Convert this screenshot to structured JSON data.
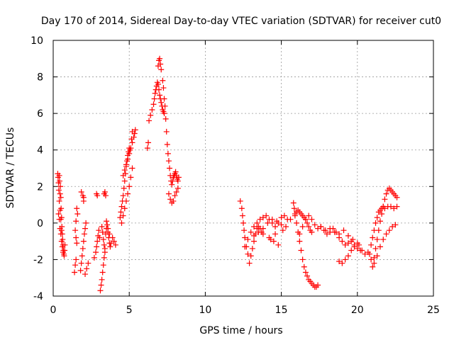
{
  "chart_data": {
    "type": "scatter",
    "title": "Day 170 of 2014, Sidereal Day-to-day VTEC variation (SDTVAR) for receiver cut0",
    "xlabel": "GPS time / hours",
    "ylabel": "SDTVAR / TECUs",
    "xlim": [
      0,
      25
    ],
    "ylim": [
      -4,
      10
    ],
    "xticks": [
      0,
      5,
      10,
      15,
      20,
      25
    ],
    "yticks": [
      -4,
      -2,
      0,
      2,
      4,
      6,
      8,
      10
    ],
    "grid": true,
    "marker": "plus",
    "color": "#ff0000",
    "series": [
      {
        "name": "SDTVAR",
        "x": [
          0.3,
          0.32,
          0.35,
          0.37,
          0.4,
          0.42,
          0.45,
          0.47,
          0.5,
          0.52,
          0.55,
          0.57,
          0.6,
          0.62,
          0.65,
          0.67,
          0.7,
          0.72,
          0.75,
          0.77,
          0.35,
          0.4,
          0.45,
          0.5,
          0.55,
          0.6,
          0.65,
          0.4,
          0.45,
          0.5,
          0.55,
          1.4,
          1.45,
          1.5,
          1.55,
          1.6,
          1.5,
          1.45,
          1.5,
          1.55,
          1.8,
          1.85,
          1.9,
          1.95,
          2.0,
          2.05,
          2.1,
          2.15,
          2.0,
          1.95,
          1.85,
          2.0,
          2.1,
          2.2,
          2.3,
          2.7,
          2.8,
          2.85,
          2.9,
          2.95,
          3.0,
          3.05,
          2.9,
          2.85,
          3.1,
          3.15,
          3.2,
          3.25,
          3.3,
          3.35,
          3.4,
          3.2,
          3.25,
          3.3,
          3.35,
          3.4,
          3.45,
          3.5,
          3.55,
          3.6,
          3.65,
          3.7,
          3.75,
          3.8,
          3.5,
          3.6,
          3.7,
          3.9,
          4.0,
          4.1,
          3.35,
          3.4,
          3.45,
          4.4,
          4.45,
          4.5,
          4.55,
          4.6,
          4.65,
          4.7,
          4.75,
          4.8,
          4.85,
          4.9,
          4.95,
          5.0,
          5.05,
          4.5,
          4.6,
          4.7,
          4.8,
          4.9,
          5.0,
          5.1,
          5.2,
          5.15,
          5.2,
          4.6,
          4.7,
          4.8,
          4.9,
          5.0,
          5.1,
          5.2,
          5.3,
          5.35,
          5.4,
          6.2,
          6.25,
          6.3,
          6.4,
          6.5,
          6.6,
          6.65,
          6.7,
          6.75,
          6.8,
          6.85,
          6.9,
          6.95,
          7.0,
          7.05,
          7.1,
          7.15,
          7.2,
          7.25,
          7.3,
          6.9,
          6.95,
          7.0,
          7.05,
          7.1,
          7.2,
          7.25,
          7.3,
          7.35,
          7.4,
          7.45,
          7.5,
          7.55,
          7.6,
          7.65,
          7.7,
          7.75,
          7.8,
          7.85,
          7.9,
          7.95,
          8.0,
          8.05,
          8.1,
          8.15,
          8.2,
          8.25,
          7.6,
          7.7,
          7.8,
          7.9,
          8.0,
          8.1,
          8.2,
          12.3,
          12.4,
          12.45,
          12.5,
          12.55,
          12.6,
          12.7,
          12.8,
          12.9,
          13.0,
          13.1,
          13.2,
          13.3,
          13.4,
          13.5,
          13.6,
          13.7,
          13.8,
          12.6,
          12.8,
          13.0,
          13.2,
          13.4,
          13.6,
          13.8,
          14.0,
          14.2,
          14.4,
          14.6,
          14.8,
          15.0,
          15.2,
          15.4,
          13.2,
          13.5,
          13.8,
          14.1,
          14.4,
          14.7,
          15.0,
          15.3,
          14.2,
          14.5,
          14.8,
          14.3,
          14.6,
          15.1,
          15.6,
          15.8,
          15.85,
          15.9,
          16.0,
          16.1,
          16.2,
          16.3,
          16.4,
          16.5,
          16.6,
          16.7,
          16.8,
          16.9,
          17.0,
          17.1,
          17.2,
          17.3,
          17.4,
          15.9,
          16.0,
          16.1,
          16.2,
          16.3,
          16.4,
          16.5,
          16.6,
          16.7,
          16.8,
          16.9,
          17.0,
          16.2,
          16.4,
          16.6,
          16.8,
          17.0,
          17.2,
          17.4,
          17.6,
          17.8,
          18.0,
          18.2,
          18.4,
          18.6,
          18.8,
          19.0,
          19.2,
          19.4,
          19.6,
          19.8,
          20.0,
          20.2,
          17.6,
          17.9,
          18.2,
          18.5,
          18.8,
          19.1,
          19.4,
          19.7,
          20.0,
          18.8,
          19.0,
          19.2,
          19.4,
          19.6,
          19.8,
          20.1,
          20.3,
          20.5,
          20.7,
          20.9,
          21.1,
          21.3,
          21.5,
          21.7,
          21.9,
          22.1,
          22.3,
          22.5,
          21.0,
          21.1,
          21.2,
          21.3,
          21.4,
          21.5,
          21.6,
          21.7,
          21.8,
          21.9,
          22.0,
          22.1,
          22.2,
          22.3,
          22.4,
          22.5,
          22.6,
          20.8,
          20.9,
          21.0,
          21.1,
          21.2,
          21.3,
          21.4,
          21.5,
          21.6,
          21.7,
          21.8,
          22.0,
          22.2,
          22.4,
          22.6
        ],
        "y": [
          2.7,
          2.5,
          2.2,
          1.8,
          2.6,
          2.3,
          1.6,
          2.0,
          1.4,
          0.8,
          0.3,
          -0.2,
          -0.6,
          -0.9,
          -1.2,
          -1.5,
          -1.7,
          -1.8,
          -1.5,
          -1.2,
          0.5,
          0.2,
          -0.3,
          -0.6,
          -1.0,
          -1.3,
          -1.6,
          1.2,
          0.7,
          0.2,
          -0.4,
          -2.7,
          -2.3,
          -2.0,
          0.8,
          0.5,
          0.1,
          -0.4,
          -0.8,
          -1.1,
          -2.6,
          -2.2,
          -1.8,
          -1.4,
          -1.0,
          -0.6,
          -0.3,
          0.0,
          1.2,
          1.5,
          1.7,
          1.4,
          -2.8,
          -2.5,
          -2.2,
          -1.9,
          -1.6,
          -1.3,
          -1.0,
          -0.7,
          -0.4,
          -0.8,
          1.5,
          1.6,
          -3.7,
          -3.4,
          -3.1,
          -2.7,
          -2.3,
          -1.9,
          -1.6,
          -0.2,
          -0.5,
          -0.9,
          -1.2,
          -1.4,
          -0.6,
          -0.3,
          -0.1,
          -0.5,
          -0.8,
          -1.1,
          -1.3,
          -1.1,
          0.1,
          -0.3,
          -0.6,
          -0.8,
          -1.0,
          -1.2,
          1.6,
          1.7,
          1.5,
          0.3,
          0.6,
          0.9,
          1.2,
          1.5,
          1.9,
          2.3,
          2.7,
          3.1,
          3.4,
          3.7,
          3.9,
          4.1,
          4.0,
          0.0,
          0.4,
          0.8,
          1.2,
          1.6,
          2.0,
          2.5,
          3.0,
          4.6,
          5.0,
          2.6,
          2.9,
          3.2,
          3.5,
          3.8,
          4.1,
          4.4,
          4.7,
          4.9,
          5.1,
          4.1,
          4.4,
          5.6,
          5.9,
          6.2,
          6.5,
          6.8,
          7.1,
          7.3,
          7.5,
          7.7,
          7.6,
          7.3,
          7.0,
          6.8,
          6.6,
          6.4,
          6.2,
          6.1,
          6.0,
          8.6,
          8.9,
          9.0,
          8.7,
          8.4,
          7.8,
          7.4,
          6.8,
          6.4,
          5.7,
          5.0,
          4.3,
          3.8,
          3.4,
          3.0,
          2.6,
          2.3,
          2.1,
          2.3,
          2.5,
          2.6,
          2.7,
          2.8,
          2.6,
          2.4,
          2.3,
          2.5,
          1.6,
          1.3,
          1.1,
          1.2,
          1.5,
          1.7,
          1.9,
          1.2,
          0.8,
          0.4,
          0.0,
          -0.4,
          -0.8,
          -1.3,
          -1.7,
          -2.2,
          -1.8,
          -1.4,
          -1.0,
          -0.6,
          -0.3,
          -0.2,
          -0.3,
          -0.5,
          -0.6,
          -1.3,
          -0.9,
          -0.5,
          -0.2,
          0.0,
          0.2,
          0.3,
          0.4,
          0.2,
          0.0,
          -0.2,
          0.0,
          0.3,
          0.4,
          0.2,
          -0.7,
          -0.5,
          -0.3,
          0.0,
          0.2,
          0.1,
          -0.1,
          -0.2,
          -0.8,
          -1.0,
          -1.2,
          -0.9,
          -0.6,
          -0.4,
          0.2,
          1.1,
          0.8,
          0.4,
          0.0,
          -0.5,
          -1.0,
          -1.5,
          -2.0,
          -2.4,
          -2.7,
          -2.9,
          -3.1,
          -3.2,
          -3.3,
          -3.4,
          -3.5,
          -3.5,
          -3.4,
          0.5,
          0.6,
          0.7,
          0.6,
          0.5,
          0.4,
          0.3,
          0.2,
          0.0,
          -0.2,
          -0.4,
          -0.5,
          -0.6,
          -0.2,
          0.2,
          0.4,
          0.2,
          -0.1,
          -0.3,
          -0.2,
          -0.4,
          -0.6,
          -0.5,
          -0.3,
          -0.5,
          -0.8,
          -1.0,
          -1.2,
          -1.1,
          -1.0,
          -1.2,
          -1.4,
          -1.5,
          -0.2,
          -0.4,
          -0.3,
          -0.5,
          -0.6,
          -0.4,
          -0.7,
          -0.9,
          -1.1,
          -2.1,
          -2.2,
          -2.0,
          -1.8,
          -1.5,
          -1.3,
          -1.2,
          -1.5,
          -1.7,
          -1.6,
          -2.0,
          -2.2,
          -1.8,
          -1.3,
          -0.9,
          -0.6,
          -0.4,
          -0.2,
          -0.1,
          -2.4,
          -1.9,
          -1.4,
          -0.9,
          -0.4,
          0.1,
          0.5,
          0.9,
          1.3,
          1.6,
          1.8,
          1.9,
          1.8,
          1.7,
          1.6,
          1.5,
          1.4,
          -1.7,
          -1.2,
          -0.8,
          -0.4,
          0.0,
          0.3,
          0.6,
          0.7,
          0.8,
          0.9,
          0.8,
          0.9,
          0.9,
          0.8,
          0.9
        ]
      }
    ]
  }
}
